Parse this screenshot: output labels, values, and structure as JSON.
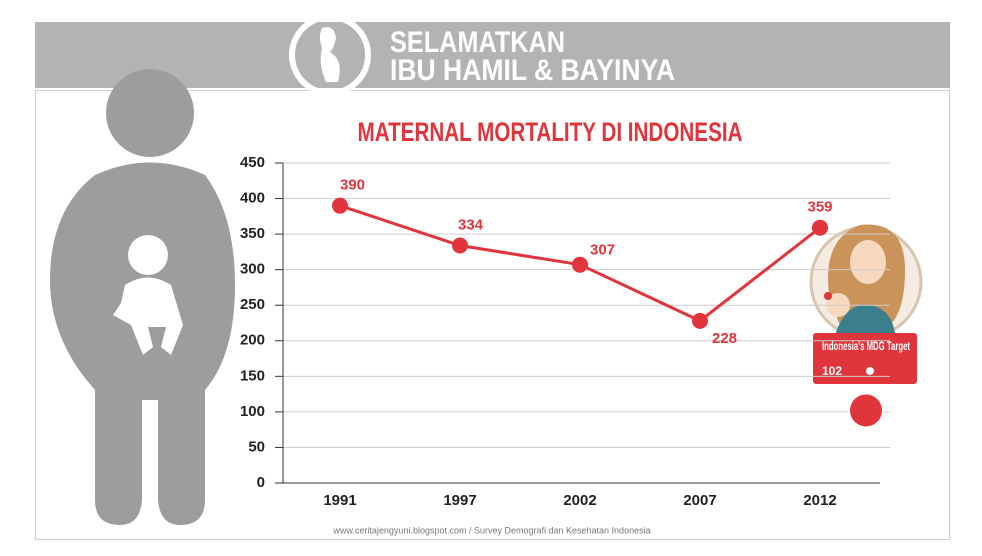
{
  "header": {
    "line1": "SELAMATKAN",
    "line2": "IBU HAMIL & BAYINYA"
  },
  "chart_data": {
    "type": "line",
    "title": "MATERNAL MORTALITY DI INDONESIA",
    "categories": [
      "1991",
      "1997",
      "2002",
      "2007",
      "2012"
    ],
    "values": [
      390,
      334,
      307,
      228,
      359
    ],
    "color": "#e0353b",
    "ylim": [
      0,
      450
    ],
    "yticks": [
      0,
      50,
      100,
      150,
      200,
      250,
      300,
      350,
      400,
      450
    ],
    "grid": true,
    "target": {
      "label": "Indonesia's MDG Target",
      "value": 102
    },
    "source": "www.ceritajengyuni.blogspot.com / Survey Demografi dan Kesehatan Indonesia"
  }
}
